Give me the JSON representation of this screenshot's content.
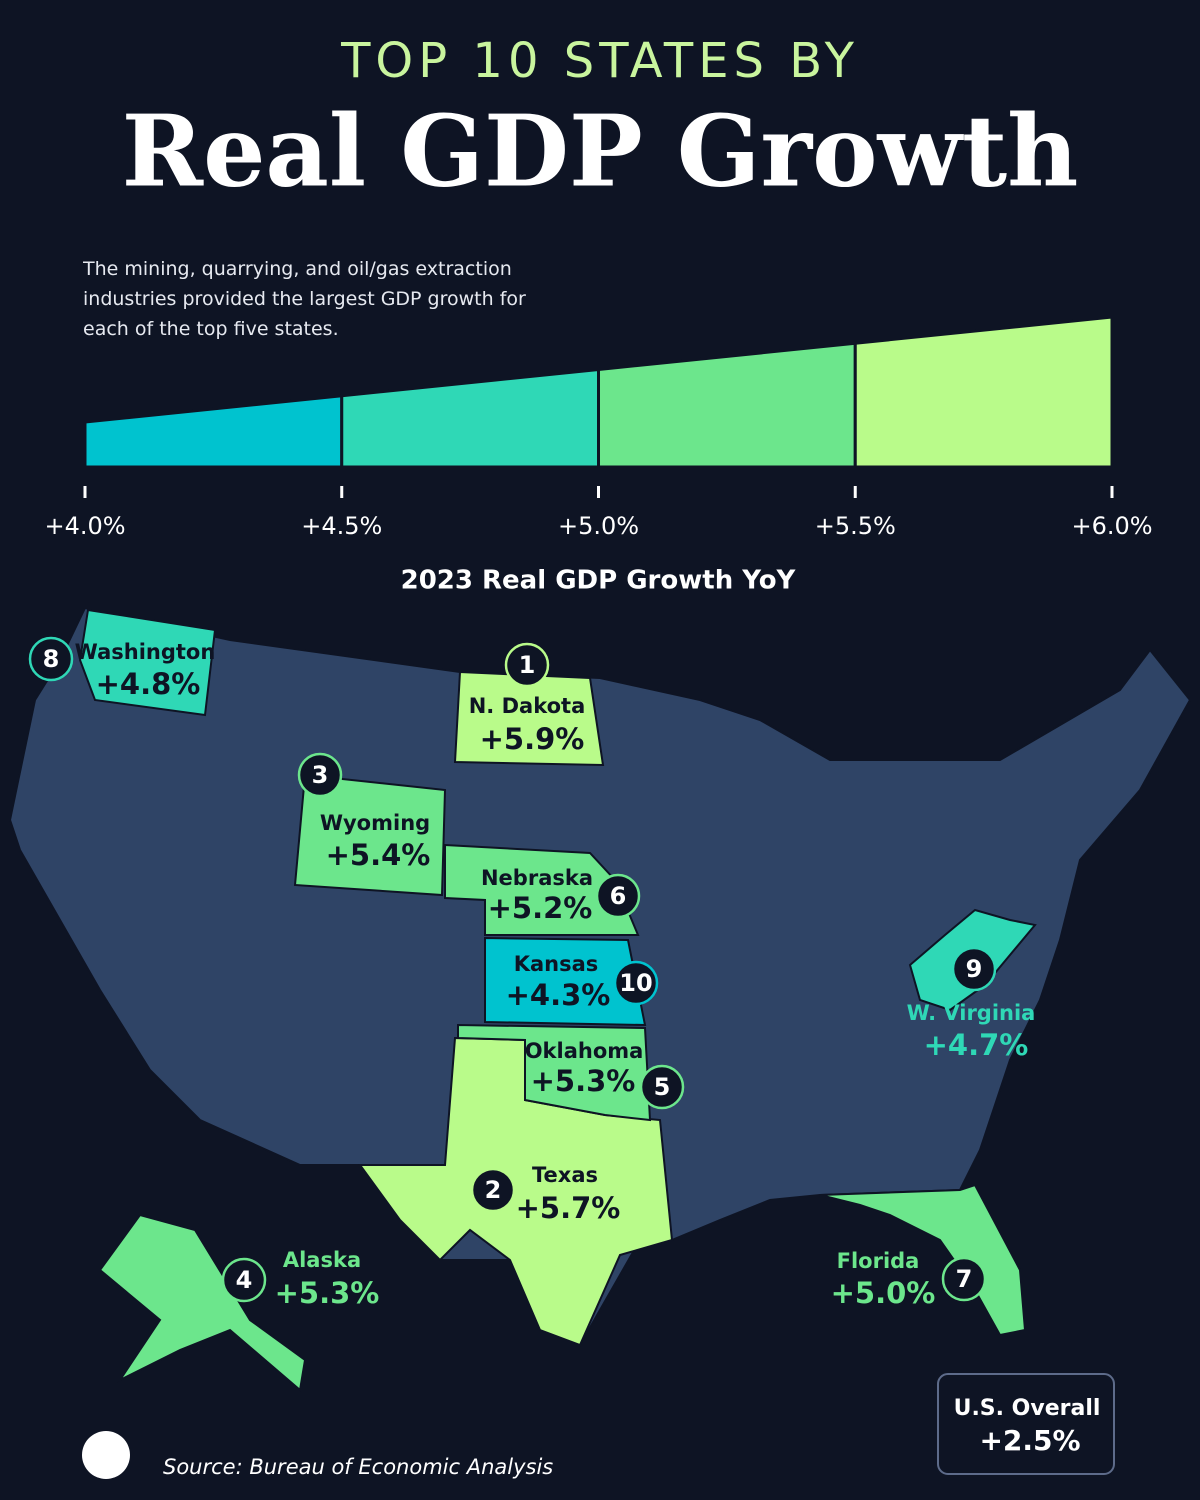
{
  "chart_data": {
    "type": "choropleth",
    "title_top": "TOP 10 STATES BY",
    "title": "Real GDP Growth",
    "subtitle": "The mining, quarrying, and oil/gas extraction industries provided the largest GDP growth for each of the top five states.",
    "legend_title": "2023 Real GDP Growth YoY",
    "xlim": [
      4.0,
      6.0
    ],
    "xticks": [
      {
        "value": 4.0,
        "label": "+4.0%"
      },
      {
        "value": 4.5,
        "label": "+4.5%"
      },
      {
        "value": 5.0,
        "label": "+5.0%"
      },
      {
        "value": 5.5,
        "label": "+5.5%"
      },
      {
        "value": 6.0,
        "label": "+6.0%"
      }
    ],
    "colors": [
      "#00c3cf",
      "#2fd8b6",
      "#6ce68c",
      "#b9fb8a"
    ],
    "states": [
      {
        "rank": 1,
        "name": "N. Dakota",
        "value": 5.9,
        "value_label": "+5.9%"
      },
      {
        "rank": 2,
        "name": "Texas",
        "value": 5.7,
        "value_label": "+5.7%"
      },
      {
        "rank": 3,
        "name": "Wyoming",
        "value": 5.4,
        "value_label": "+5.4%"
      },
      {
        "rank": 4,
        "name": "Alaska",
        "value": 5.3,
        "value_label": "+5.3%"
      },
      {
        "rank": 5,
        "name": "Oklahoma",
        "value": 5.3,
        "value_label": "+5.3%"
      },
      {
        "rank": 6,
        "name": "Nebraska",
        "value": 5.2,
        "value_label": "+5.2%"
      },
      {
        "rank": 7,
        "name": "Florida",
        "value": 5.0,
        "value_label": "+5.0%"
      },
      {
        "rank": 8,
        "name": "Washington",
        "value": 4.8,
        "value_label": "+4.8%"
      },
      {
        "rank": 9,
        "name": "W. Virginia",
        "value": 4.7,
        "value_label": "+4.7%"
      },
      {
        "rank": 10,
        "name": "Kansas",
        "value": 4.3,
        "value_label": "+4.3%"
      }
    ],
    "overall": {
      "label": "U.S. Overall",
      "value": 2.5,
      "value_label": "+2.5%"
    },
    "source": "Source: Bureau of Economic Analysis"
  }
}
